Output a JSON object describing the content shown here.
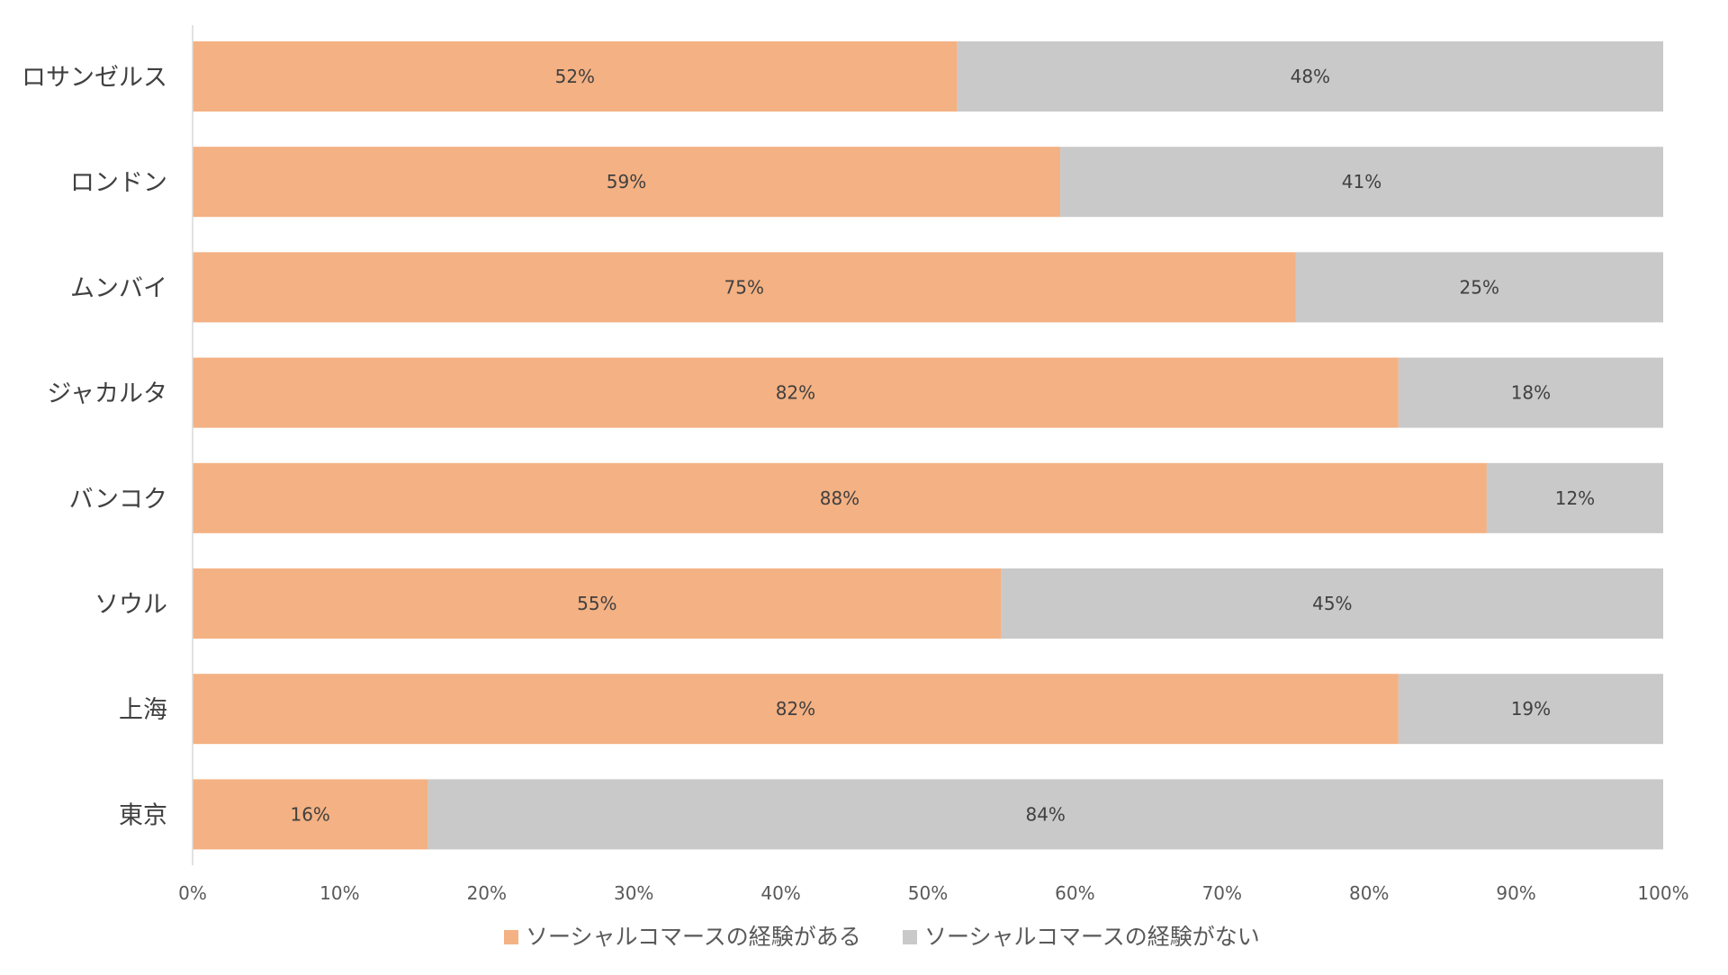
{
  "chart_data": {
    "type": "bar",
    "orientation": "horizontal",
    "stacked": true,
    "categories": [
      "ロサンゼルス",
      "ロンドン",
      "ムンバイ",
      "ジャカルタ",
      "バンコク",
      "ソウル",
      "上海",
      "東京"
    ],
    "series": [
      {
        "name": "ソーシャルコマースの経験がある",
        "color": "#F4B183",
        "values": [
          52,
          59,
          75,
          82,
          88,
          55,
          82,
          16
        ]
      },
      {
        "name": "ソーシャルコマースの経験がない",
        "color": "#C9C9C9",
        "values": [
          48,
          41,
          25,
          18,
          12,
          45,
          19,
          84
        ]
      }
    ],
    "data_labels": [
      [
        "52%",
        "59%",
        "75%",
        "82%",
        "88%",
        "55%",
        "82%",
        "16%"
      ],
      [
        "48%",
        "41%",
        "25%",
        "18%",
        "12%",
        "45%",
        "19%",
        "84%"
      ]
    ],
    "xlim": [
      0,
      100
    ],
    "x_ticks": [
      0,
      10,
      20,
      30,
      40,
      50,
      60,
      70,
      80,
      90,
      100
    ],
    "x_tick_labels": [
      "0%",
      "10%",
      "20%",
      "30%",
      "40%",
      "50%",
      "60%",
      "70%",
      "80%",
      "90%",
      "100%"
    ],
    "grid": false,
    "legend_position": "bottom",
    "title": "",
    "xlabel": "",
    "ylabel": ""
  }
}
